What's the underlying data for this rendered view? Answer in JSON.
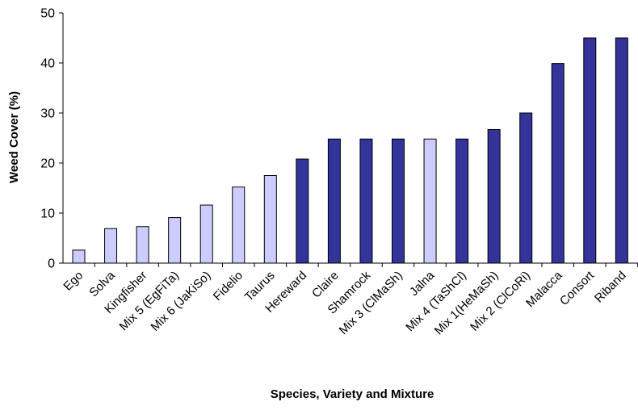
{
  "chart_data": {
    "type": "bar",
    "title": "",
    "xlabel": "Species, Variety and Mixture",
    "ylabel": "Weed Cover (%)",
    "ylim": [
      0,
      50
    ],
    "yticks": [
      0,
      10,
      20,
      30,
      40,
      50
    ],
    "grid": false,
    "legend": "none",
    "categories": [
      "Ego",
      "Solva",
      "Kingfisher",
      "Mix 5 (EgFiTa)",
      "Mix 6 (JaKiSo)",
      "Fidelio",
      "Taurus",
      "Hereward",
      "Claire",
      "Shamrock",
      "Mix 3 (ClMaSh)",
      "Jalna",
      "Mix 4 (TaShCl)",
      "Mix 1(HeMaSh)",
      "Mix 2 (ClCoRi)",
      "Malacca",
      "Consort",
      "Riband"
    ],
    "values": [
      2.6,
      6.9,
      7.3,
      9.1,
      11.6,
      15.2,
      17.5,
      20.8,
      24.8,
      24.8,
      24.8,
      24.8,
      24.8,
      26.7,
      30.0,
      39.9,
      45.0,
      45.0
    ],
    "bar_groups": [
      "light",
      "light",
      "light",
      "light",
      "light",
      "light",
      "light",
      "dark",
      "dark",
      "dark",
      "dark",
      "light",
      "dark",
      "dark",
      "dark",
      "dark",
      "dark",
      "dark"
    ],
    "colors": {
      "light": "#ccccff",
      "dark": "#333399",
      "outline": "#000000"
    }
  }
}
